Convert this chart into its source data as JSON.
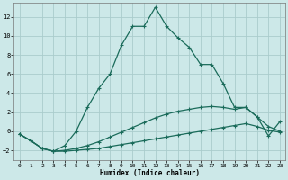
{
  "xlabel": "Humidex (Indice chaleur)",
  "bg_color": "#cce8e8",
  "grid_color": "#aacccc",
  "line_color": "#1a6b5a",
  "xlim": [
    -0.5,
    23.5
  ],
  "ylim": [
    -3.0,
    13.5
  ],
  "xticks": [
    0,
    1,
    2,
    3,
    4,
    5,
    6,
    7,
    8,
    9,
    10,
    11,
    12,
    13,
    14,
    15,
    16,
    17,
    18,
    19,
    20,
    21,
    22,
    23
  ],
  "yticks": [
    -2,
    0,
    2,
    4,
    6,
    8,
    10,
    12
  ],
  "series1_x": [
    0,
    1,
    2,
    3,
    4,
    5,
    6,
    7,
    8,
    9,
    10,
    11,
    12,
    13,
    14,
    15,
    16,
    17,
    18,
    19,
    20,
    21,
    22,
    23
  ],
  "series1_y": [
    -0.3,
    -1.0,
    -1.8,
    -2.1,
    -2.1,
    -2.0,
    -1.9,
    -1.8,
    -1.6,
    -1.4,
    -1.2,
    -1.0,
    -0.8,
    -0.6,
    -0.4,
    -0.2,
    0.0,
    0.2,
    0.4,
    0.6,
    0.8,
    0.5,
    0.1,
    -0.1
  ],
  "series2_x": [
    0,
    1,
    2,
    3,
    4,
    5,
    6,
    7,
    8,
    9,
    10,
    11,
    12,
    13,
    14,
    15,
    16,
    17,
    18,
    19,
    20,
    21,
    22,
    23
  ],
  "series2_y": [
    -0.3,
    -1.0,
    -1.8,
    -2.1,
    -2.0,
    -1.8,
    -1.5,
    -1.1,
    -0.6,
    -0.1,
    0.4,
    0.9,
    1.4,
    1.8,
    2.1,
    2.3,
    2.5,
    2.6,
    2.5,
    2.3,
    2.5,
    1.5,
    0.5,
    0.0
  ],
  "series3_x": [
    0,
    1,
    2,
    3,
    4,
    5,
    6,
    7,
    8,
    9,
    10,
    11,
    12,
    13,
    14,
    15,
    16,
    17,
    18,
    19,
    20,
    21,
    22,
    23
  ],
  "series3_y": [
    -0.3,
    -1.0,
    -1.8,
    -2.1,
    -1.5,
    0.0,
    2.5,
    4.5,
    6.0,
    9.0,
    11.0,
    11.0,
    13.0,
    11.0,
    9.8,
    8.8,
    7.0,
    7.0,
    5.0,
    2.5,
    2.5,
    1.5,
    -0.5,
    1.0
  ],
  "figsize": [
    3.2,
    2.0
  ],
  "dpi": 100
}
